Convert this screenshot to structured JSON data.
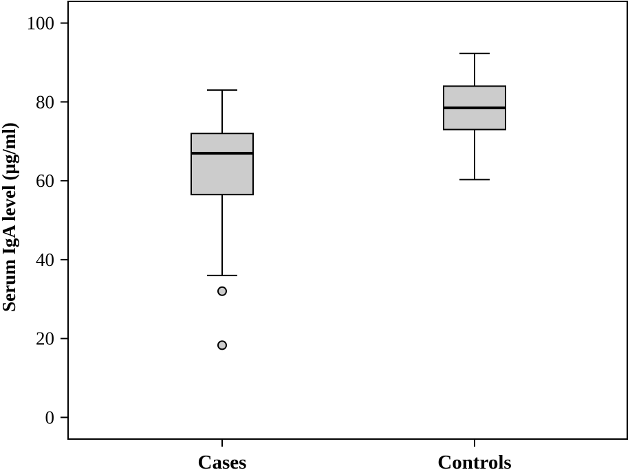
{
  "chart_data": {
    "type": "box",
    "title": "",
    "xlabel": "",
    "ylabel": "Serum IgA level (µg/ml)",
    "ylim": [
      -5.5,
      105.5
    ],
    "yticks": [
      0,
      20,
      40,
      60,
      80,
      100
    ],
    "grid": false,
    "categories": [
      "Cases",
      "Controls"
    ],
    "series": [
      {
        "category": "Cases",
        "whisker_low": 36,
        "q1": 56.5,
        "median": 67,
        "q3": 72,
        "whisker_high": 83,
        "outliers": [
          32,
          18.3
        ]
      },
      {
        "category": "Controls",
        "whisker_low": 60.3,
        "q1": 73,
        "median": 78.5,
        "q3": 84,
        "whisker_high": 92.3,
        "outliers": []
      }
    ],
    "colors": {
      "box_fill": "#cccccc",
      "stroke": "#000000",
      "outlier_fill": "#cccccc"
    }
  }
}
